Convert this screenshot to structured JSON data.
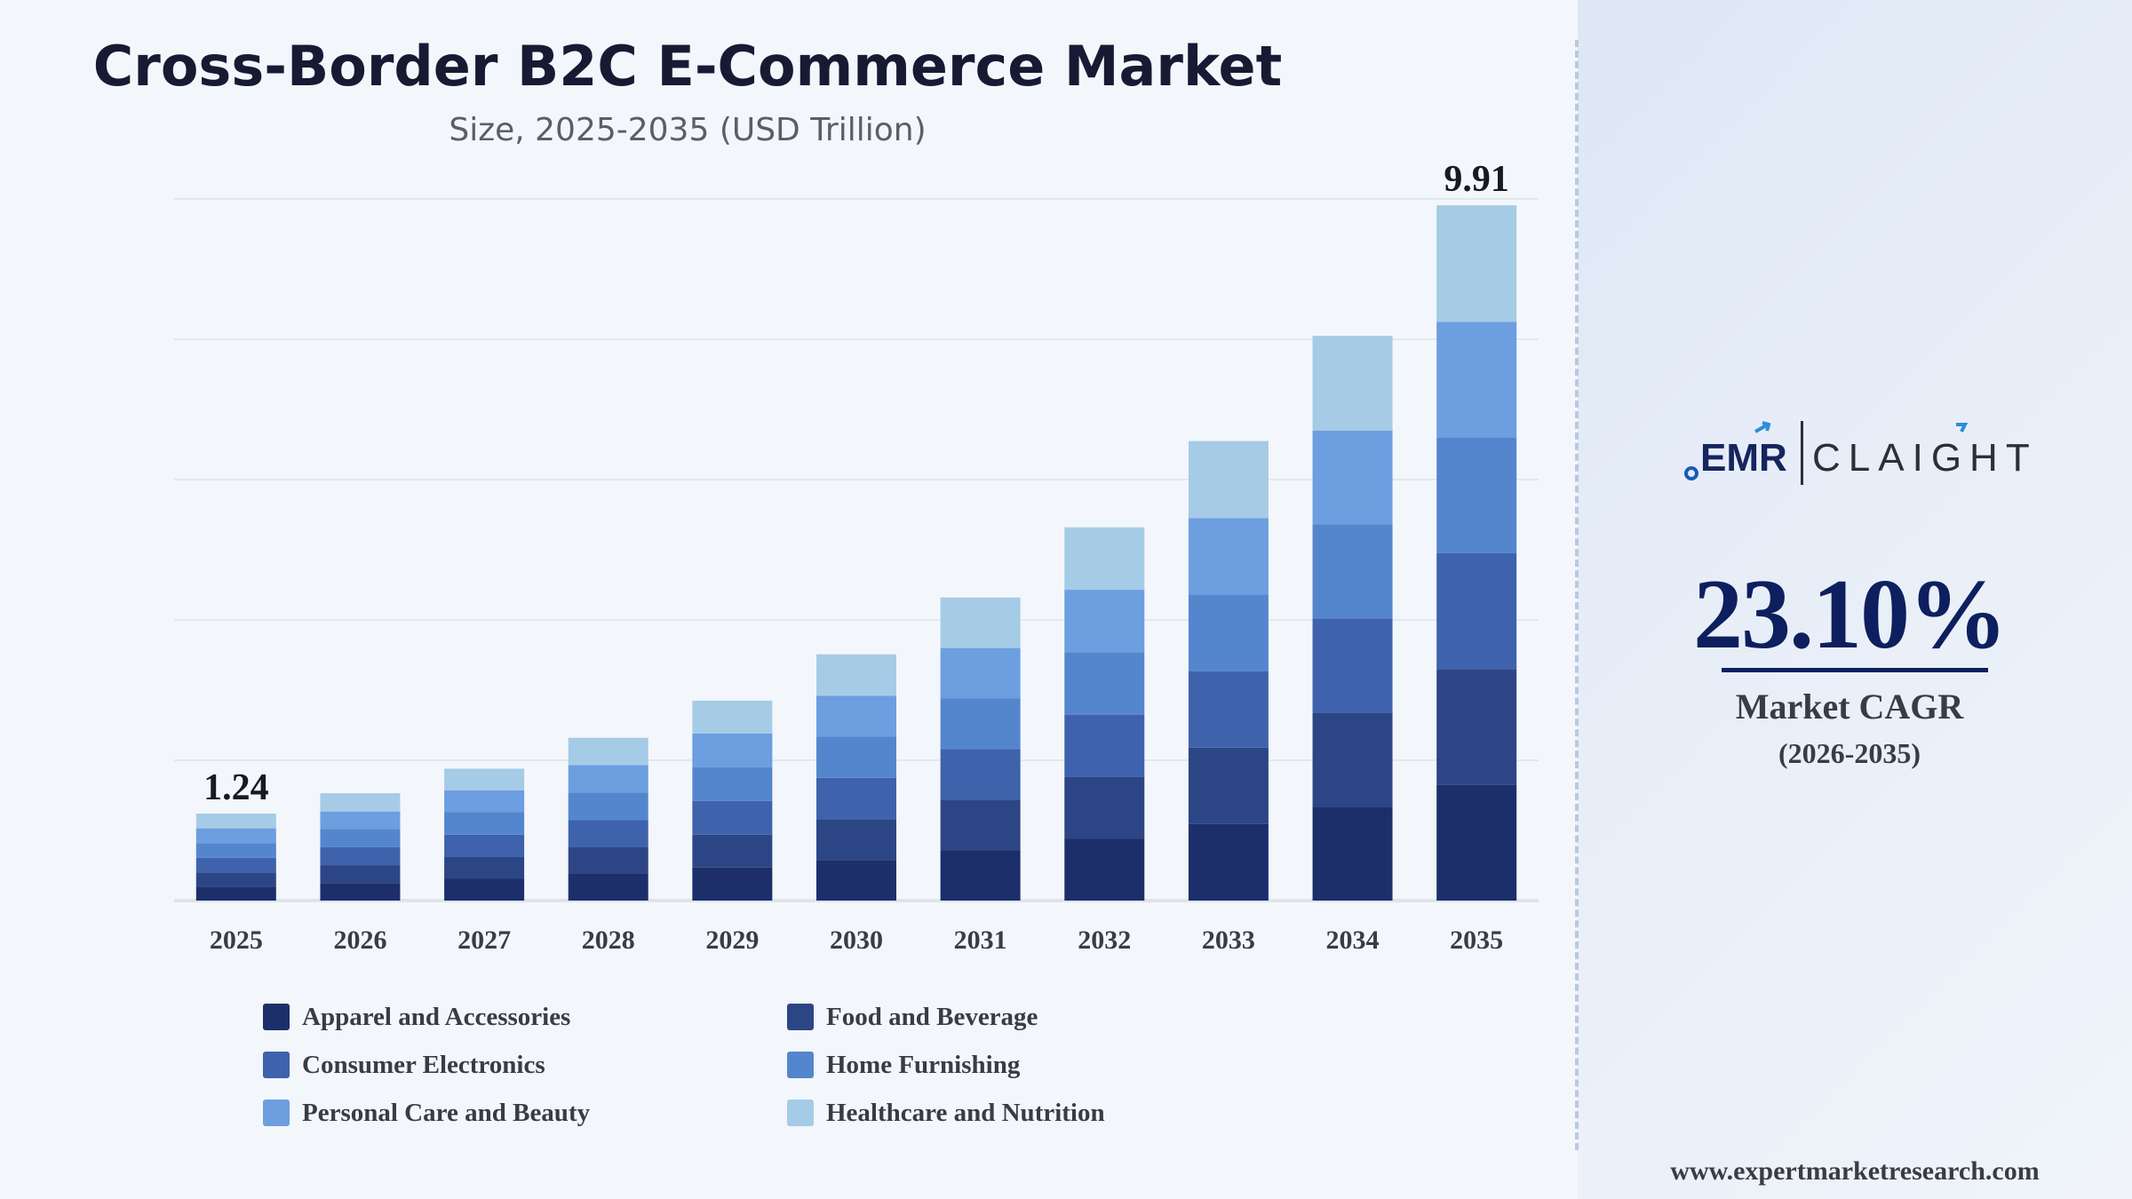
{
  "chart_data": {
    "type": "bar",
    "stacked": true,
    "title": "Cross-Border B2C E-Commerce Market",
    "subtitle": "Size, 2025-2035 (USD Trillion)",
    "categories": [
      "2025",
      "2026",
      "2027",
      "2028",
      "2029",
      "2030",
      "2031",
      "2032",
      "2033",
      "2034",
      "2035"
    ],
    "totals": [
      1.24,
      1.53,
      1.88,
      2.32,
      2.85,
      3.51,
      4.32,
      5.32,
      6.55,
      8.05,
      9.91
    ],
    "total_labels": [
      {
        "category": "2025",
        "text": "1.24"
      },
      {
        "category": "2035",
        "text": "9.91"
      }
    ],
    "series": [
      {
        "name": "Apparel and Accessories",
        "color": "#1c2f6b",
        "values": [
          0.2,
          0.25,
          0.31,
          0.38,
          0.47,
          0.58,
          0.72,
          0.88,
          1.09,
          1.34,
          1.65
        ]
      },
      {
        "name": "Food and Beverage",
        "color": "#2c4585",
        "values": [
          0.2,
          0.25,
          0.31,
          0.38,
          0.47,
          0.58,
          0.72,
          0.88,
          1.09,
          1.34,
          1.65
        ]
      },
      {
        "name": "Consumer Electronics",
        "color": "#3f62ac",
        "values": [
          0.21,
          0.26,
          0.32,
          0.39,
          0.48,
          0.59,
          0.72,
          0.89,
          1.09,
          1.34,
          1.65
        ]
      },
      {
        "name": "Home Furnishing",
        "color": "#5486ce",
        "values": [
          0.21,
          0.26,
          0.32,
          0.39,
          0.48,
          0.59,
          0.72,
          0.89,
          1.09,
          1.34,
          1.65
        ]
      },
      {
        "name": "Personal Care and Beauty",
        "color": "#6c9ee0",
        "values": [
          0.21,
          0.25,
          0.31,
          0.39,
          0.48,
          0.58,
          0.72,
          0.89,
          1.09,
          1.34,
          1.65
        ]
      },
      {
        "name": "Healthcare and Nutrition",
        "color": "#a6cbe6",
        "values": [
          0.21,
          0.26,
          0.31,
          0.39,
          0.47,
          0.59,
          0.72,
          0.89,
          1.1,
          1.35,
          1.66
        ]
      }
    ],
    "ylim": [
      0,
      10
    ],
    "grid": true,
    "legend": "bottom"
  },
  "side_panel": {
    "logo": {
      "left_text": "EMR",
      "right_text": "CLAIGHT"
    },
    "cagr_value": "23.10%",
    "cagr_label": "Market CAGR",
    "cagr_period": "(2026-2035)",
    "website": "www.expertmarketresearch.com"
  }
}
